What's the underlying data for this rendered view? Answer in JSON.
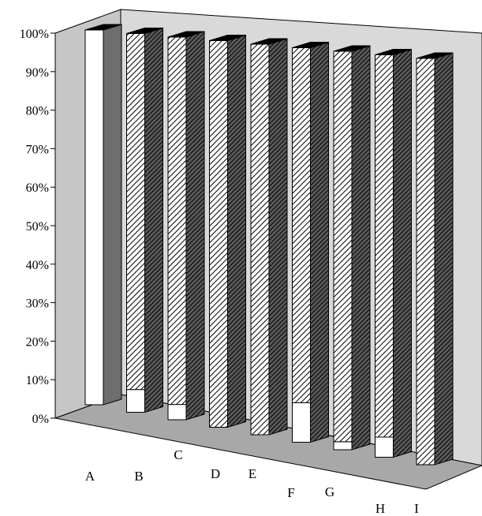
{
  "chart_data": {
    "type": "bar",
    "stacked": true,
    "percent_stacked": true,
    "three_d": true,
    "title": "",
    "xlabel": "",
    "ylabel": "",
    "ylim": [
      0,
      100
    ],
    "y_ticks": [
      "0%",
      "10%",
      "20%",
      "30%",
      "40%",
      "50%",
      "60%",
      "70%",
      "80%",
      "90%",
      "100%"
    ],
    "categories": [
      "A",
      "B",
      "C",
      "D",
      "E",
      "F",
      "G",
      "H",
      "I"
    ],
    "series": [
      {
        "values": [
          100,
          6,
          4,
          0,
          0,
          10,
          2,
          5,
          0
        ],
        "color": "#ffffff",
        "pattern": "none"
      },
      {
        "values": [
          0,
          94,
          96,
          100,
          100,
          90,
          98,
          95,
          100
        ],
        "color": "#ffffff",
        "pattern": "diagonal-hatch"
      }
    ],
    "grid": false,
    "legend": "none"
  }
}
